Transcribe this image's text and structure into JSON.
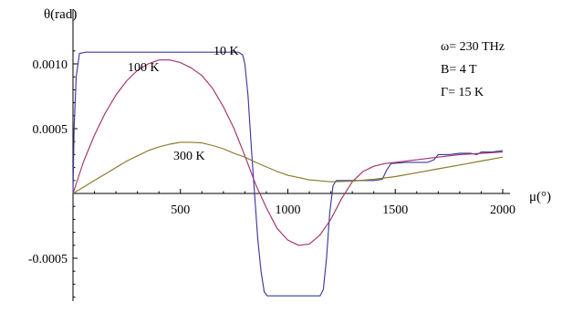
{
  "chart_data": {
    "type": "line",
    "ylabel": "θ(rad)",
    "xlabel": "μ(°)",
    "xlim": [
      0,
      2000
    ],
    "ylim": [
      -0.00085,
      0.00115
    ],
    "x_ticks": [
      500,
      1000,
      1500,
      2000
    ],
    "x_tick_labels": [
      "500",
      "1000",
      "1500",
      "2000"
    ],
    "y_ticks": [
      0.001,
      0.0005,
      -0.0005
    ],
    "y_tick_labels": [
      "0.0010",
      "0.0005",
      "-0.0005"
    ],
    "annotations": {
      "omega": "ω= 230 THz",
      "field": "B= 4 T",
      "gamma": "Γ= 15 K"
    },
    "grid": false,
    "series": [
      {
        "name": "10 K",
        "color": "#3b3ba0",
        "points": [
          [
            0,
            0
          ],
          [
            5,
            0.0005
          ],
          [
            15,
            0.0009
          ],
          [
            30,
            0.00108
          ],
          [
            60,
            0.00109
          ],
          [
            400,
            0.00109
          ],
          [
            770,
            0.00109
          ],
          [
            790,
            0.00107
          ],
          [
            800,
            0.001
          ],
          [
            815,
            0.00075
          ],
          [
            830,
            0.00035
          ],
          [
            845,
            0.0
          ],
          [
            860,
            -0.00035
          ],
          [
            875,
            -0.0006
          ],
          [
            890,
            -0.00076
          ],
          [
            905,
            -0.00079
          ],
          [
            1000,
            -0.00079
          ],
          [
            1150,
            -0.00079
          ],
          [
            1165,
            -0.00074
          ],
          [
            1180,
            -0.0005
          ],
          [
            1195,
            -0.00015
          ],
          [
            1210,
            6e-05
          ],
          [
            1225,
            0.0001
          ],
          [
            1300,
            0.0001
          ],
          [
            1400,
            0.0001
          ],
          [
            1440,
            0.00011
          ],
          [
            1460,
            0.00018
          ],
          [
            1480,
            0.00023
          ],
          [
            1550,
            0.00024
          ],
          [
            1650,
            0.00024
          ],
          [
            1680,
            0.00026
          ],
          [
            1700,
            0.0003
          ],
          [
            1750,
            0.0003
          ],
          [
            1800,
            0.00031
          ],
          [
            1850,
            0.00031
          ],
          [
            1880,
            0.0003
          ],
          [
            1900,
            0.00032
          ],
          [
            1950,
            0.00032
          ],
          [
            2000,
            0.00033
          ]
        ]
      },
      {
        "name": "100 K",
        "color": "#a3326e",
        "points": [
          [
            0,
            0
          ],
          [
            50,
            0.00025
          ],
          [
            100,
            0.00045
          ],
          [
            150,
            0.00062
          ],
          [
            200,
            0.00076
          ],
          [
            250,
            0.00087
          ],
          [
            300,
            0.00095
          ],
          [
            350,
            0.001
          ],
          [
            400,
            0.00103
          ],
          [
            450,
            0.00103
          ],
          [
            500,
            0.00101
          ],
          [
            550,
            0.00097
          ],
          [
            600,
            0.00091
          ],
          [
            650,
            0.00081
          ],
          [
            700,
            0.00067
          ],
          [
            750,
            0.0005
          ],
          [
            800,
            0.00029
          ],
          [
            850,
            7e-05
          ],
          [
            900,
            -0.00011
          ],
          [
            950,
            -0.00027
          ],
          [
            1000,
            -0.00036
          ],
          [
            1050,
            -0.0004
          ],
          [
            1100,
            -0.00039
          ],
          [
            1150,
            -0.00032
          ],
          [
            1200,
            -0.0002
          ],
          [
            1250,
            -4e-05
          ],
          [
            1300,
            9e-05
          ],
          [
            1350,
            0.00017
          ],
          [
            1400,
            0.00021
          ],
          [
            1450,
            0.00023
          ],
          [
            1500,
            0.00024
          ],
          [
            1600,
            0.00026
          ],
          [
            1700,
            0.00028
          ],
          [
            1800,
            0.0003
          ],
          [
            1900,
            0.00031
          ],
          [
            2000,
            0.00032
          ]
        ]
      },
      {
        "name": "300 K",
        "color": "#8a7a2a",
        "points": [
          [
            0,
            0
          ],
          [
            50,
            5e-05
          ],
          [
            100,
            0.0001
          ],
          [
            150,
            0.00015
          ],
          [
            200,
            0.0002
          ],
          [
            250,
            0.00025
          ],
          [
            300,
            0.00029
          ],
          [
            350,
            0.00033
          ],
          [
            400,
            0.00036
          ],
          [
            450,
            0.00038
          ],
          [
            500,
            0.000395
          ],
          [
            550,
            0.000395
          ],
          [
            600,
            0.00039
          ],
          [
            650,
            0.00037
          ],
          [
            700,
            0.000345
          ],
          [
            750,
            0.00031
          ],
          [
            800,
            0.00028
          ],
          [
            850,
            0.00024
          ],
          [
            900,
            0.000205
          ],
          [
            950,
            0.00017
          ],
          [
            1000,
            0.00014
          ],
          [
            1100,
            0.000105
          ],
          [
            1200,
            9e-05
          ],
          [
            1300,
            9.5e-05
          ],
          [
            1400,
            0.00011
          ],
          [
            1500,
            0.00013
          ],
          [
            1600,
            0.00016
          ],
          [
            1700,
            0.00019
          ],
          [
            1800,
            0.00022
          ],
          [
            1900,
            0.00025
          ],
          [
            2000,
            0.00028
          ]
        ]
      }
    ]
  }
}
